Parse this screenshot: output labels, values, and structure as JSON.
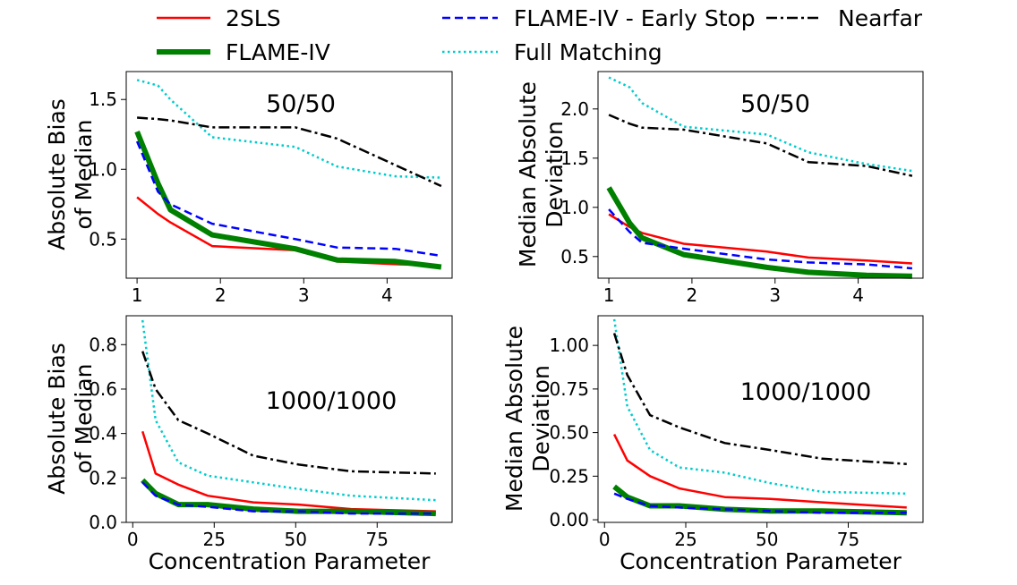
{
  "legend": {
    "entries": [
      {
        "label": "2SLS",
        "color": "#ff0000",
        "dash": "solid",
        "width": 2.5
      },
      {
        "label": "FLAME-IV",
        "color": "#008000",
        "dash": "solid",
        "width": 6
      },
      {
        "label": "FLAME-IV - Early Stop",
        "color": "#0000ff",
        "dash": "dashed",
        "width": 2.5
      },
      {
        "label": "Full Matching",
        "color": "#00cccc",
        "dash": "dotted",
        "width": 2.5
      },
      {
        "label": "Nearfar",
        "color": "#000000",
        "dash": "dashdot",
        "width": 2.5
      }
    ]
  },
  "chart_data": [
    {
      "type": "line",
      "annotation": "50/50",
      "ylabel": [
        "Absolute Bias",
        "of Median"
      ],
      "xlabel": "",
      "xlim": [
        0.87,
        4.78
      ],
      "ylim": [
        0.22,
        1.7
      ],
      "xticks": [
        1,
        2,
        3,
        4
      ],
      "xtick_labels": [
        "1",
        "2",
        "3",
        "4"
      ],
      "yticks": [
        0.5,
        1.0,
        1.5
      ],
      "ytick_labels": [
        "0.5",
        "1.0",
        "1.5"
      ],
      "x": [
        1.0,
        1.25,
        1.4,
        1.9,
        2.9,
        3.4,
        4.1,
        4.65
      ],
      "series": [
        {
          "name": "2SLS",
          "values": [
            0.8,
            0.68,
            0.62,
            0.45,
            0.42,
            0.34,
            0.32,
            0.31
          ]
        },
        {
          "name": "FLAME-IV",
          "values": [
            1.27,
            0.9,
            0.71,
            0.53,
            0.43,
            0.35,
            0.34,
            0.3
          ]
        },
        {
          "name": "FLAME-IV - Early Stop",
          "values": [
            1.2,
            0.84,
            0.75,
            0.61,
            0.5,
            0.44,
            0.43,
            0.38
          ]
        },
        {
          "name": "Full Matching",
          "values": [
            1.64,
            1.6,
            1.5,
            1.23,
            1.16,
            1.02,
            0.95,
            0.94
          ]
        },
        {
          "name": "Nearfar",
          "values": [
            1.37,
            1.36,
            1.35,
            1.3,
            1.3,
            1.22,
            1.03,
            0.88
          ]
        }
      ]
    },
    {
      "type": "line",
      "annotation": "50/50",
      "ylabel": [
        "Median Absolute",
        "Deviation"
      ],
      "xlabel": "",
      "xlim": [
        0.87,
        4.78
      ],
      "ylim": [
        0.28,
        2.38
      ],
      "xticks": [
        1,
        2,
        3,
        4
      ],
      "xtick_labels": [
        "1",
        "2",
        "3",
        "4"
      ],
      "yticks": [
        0.5,
        1.0,
        1.5,
        2.0
      ],
      "ytick_labels": [
        "0.5",
        "1.0",
        "1.5",
        "2.0"
      ],
      "x": [
        1.0,
        1.25,
        1.4,
        1.9,
        2.9,
        3.4,
        4.1,
        4.65
      ],
      "series": [
        {
          "name": "2SLS",
          "values": [
            0.93,
            0.8,
            0.74,
            0.63,
            0.55,
            0.49,
            0.46,
            0.43
          ]
        },
        {
          "name": "FLAME-IV",
          "values": [
            1.2,
            0.84,
            0.69,
            0.52,
            0.39,
            0.34,
            0.31,
            0.3
          ]
        },
        {
          "name": "FLAME-IV - Early Stop",
          "values": [
            0.98,
            0.75,
            0.64,
            0.58,
            0.47,
            0.44,
            0.42,
            0.38
          ]
        },
        {
          "name": "Full Matching",
          "values": [
            2.32,
            2.22,
            2.06,
            1.82,
            1.74,
            1.56,
            1.44,
            1.37
          ]
        },
        {
          "name": "Nearfar",
          "values": [
            1.94,
            1.85,
            1.81,
            1.79,
            1.65,
            1.46,
            1.42,
            1.32
          ]
        }
      ]
    },
    {
      "type": "line",
      "annotation": "1000/1000",
      "ylabel": [
        "Absolute Bias",
        "of Median"
      ],
      "xlabel": "Concentration Parameter",
      "xlim": [
        -2,
        98
      ],
      "ylim": [
        0,
        0.93
      ],
      "xticks": [
        0,
        25,
        50,
        75
      ],
      "xtick_labels": [
        "0",
        "25",
        "50",
        "75"
      ],
      "yticks": [
        0.0,
        0.2,
        0.4,
        0.6,
        0.8
      ],
      "ytick_labels": [
        "0.0",
        "0.2",
        "0.4",
        "0.6",
        "0.8"
      ],
      "x": [
        3,
        7,
        14,
        23,
        37,
        51,
        67,
        93
      ],
      "series": [
        {
          "name": "2SLS",
          "values": [
            0.41,
            0.22,
            0.17,
            0.12,
            0.09,
            0.08,
            0.06,
            0.05
          ]
        },
        {
          "name": "FLAME-IV",
          "values": [
            0.19,
            0.13,
            0.08,
            0.08,
            0.06,
            0.05,
            0.05,
            0.04
          ]
        },
        {
          "name": "FLAME-IV - Early Stop",
          "values": [
            0.18,
            0.12,
            0.08,
            0.07,
            0.05,
            0.05,
            0.04,
            0.04
          ]
        },
        {
          "name": "Full Matching",
          "values": [
            0.91,
            0.46,
            0.27,
            0.21,
            0.18,
            0.15,
            0.12,
            0.1
          ]
        },
        {
          "name": "Nearfar",
          "values": [
            0.77,
            0.6,
            0.46,
            0.4,
            0.3,
            0.26,
            0.23,
            0.22
          ]
        }
      ]
    },
    {
      "type": "line",
      "annotation": "1000/1000",
      "ylabel": [
        "Median Absolute",
        "Deviation"
      ],
      "xlabel": "Concentration Parameter",
      "xlim": [
        -2,
        98
      ],
      "ylim": [
        -0.015,
        1.17
      ],
      "xticks": [
        0,
        25,
        50,
        75
      ],
      "xtick_labels": [
        "0",
        "25",
        "50",
        "75"
      ],
      "yticks": [
        0.0,
        0.25,
        0.5,
        0.75,
        1.0
      ],
      "ytick_labels": [
        "0.00",
        "0.25",
        "0.50",
        "0.75",
        "1.00"
      ],
      "x": [
        3,
        7,
        14,
        23,
        37,
        51,
        67,
        93
      ],
      "series": [
        {
          "name": "2SLS",
          "values": [
            0.49,
            0.34,
            0.25,
            0.18,
            0.13,
            0.12,
            0.1,
            0.07
          ]
        },
        {
          "name": "FLAME-IV",
          "values": [
            0.19,
            0.13,
            0.08,
            0.08,
            0.06,
            0.05,
            0.05,
            0.04
          ]
        },
        {
          "name": "FLAME-IV - Early Stop",
          "values": [
            0.15,
            0.12,
            0.08,
            0.07,
            0.06,
            0.05,
            0.04,
            0.04
          ]
        },
        {
          "name": "Full Matching",
          "values": [
            1.15,
            0.65,
            0.4,
            0.3,
            0.27,
            0.21,
            0.16,
            0.15
          ]
        },
        {
          "name": "Nearfar",
          "values": [
            1.07,
            0.83,
            0.6,
            0.53,
            0.44,
            0.4,
            0.35,
            0.32
          ]
        }
      ]
    }
  ]
}
